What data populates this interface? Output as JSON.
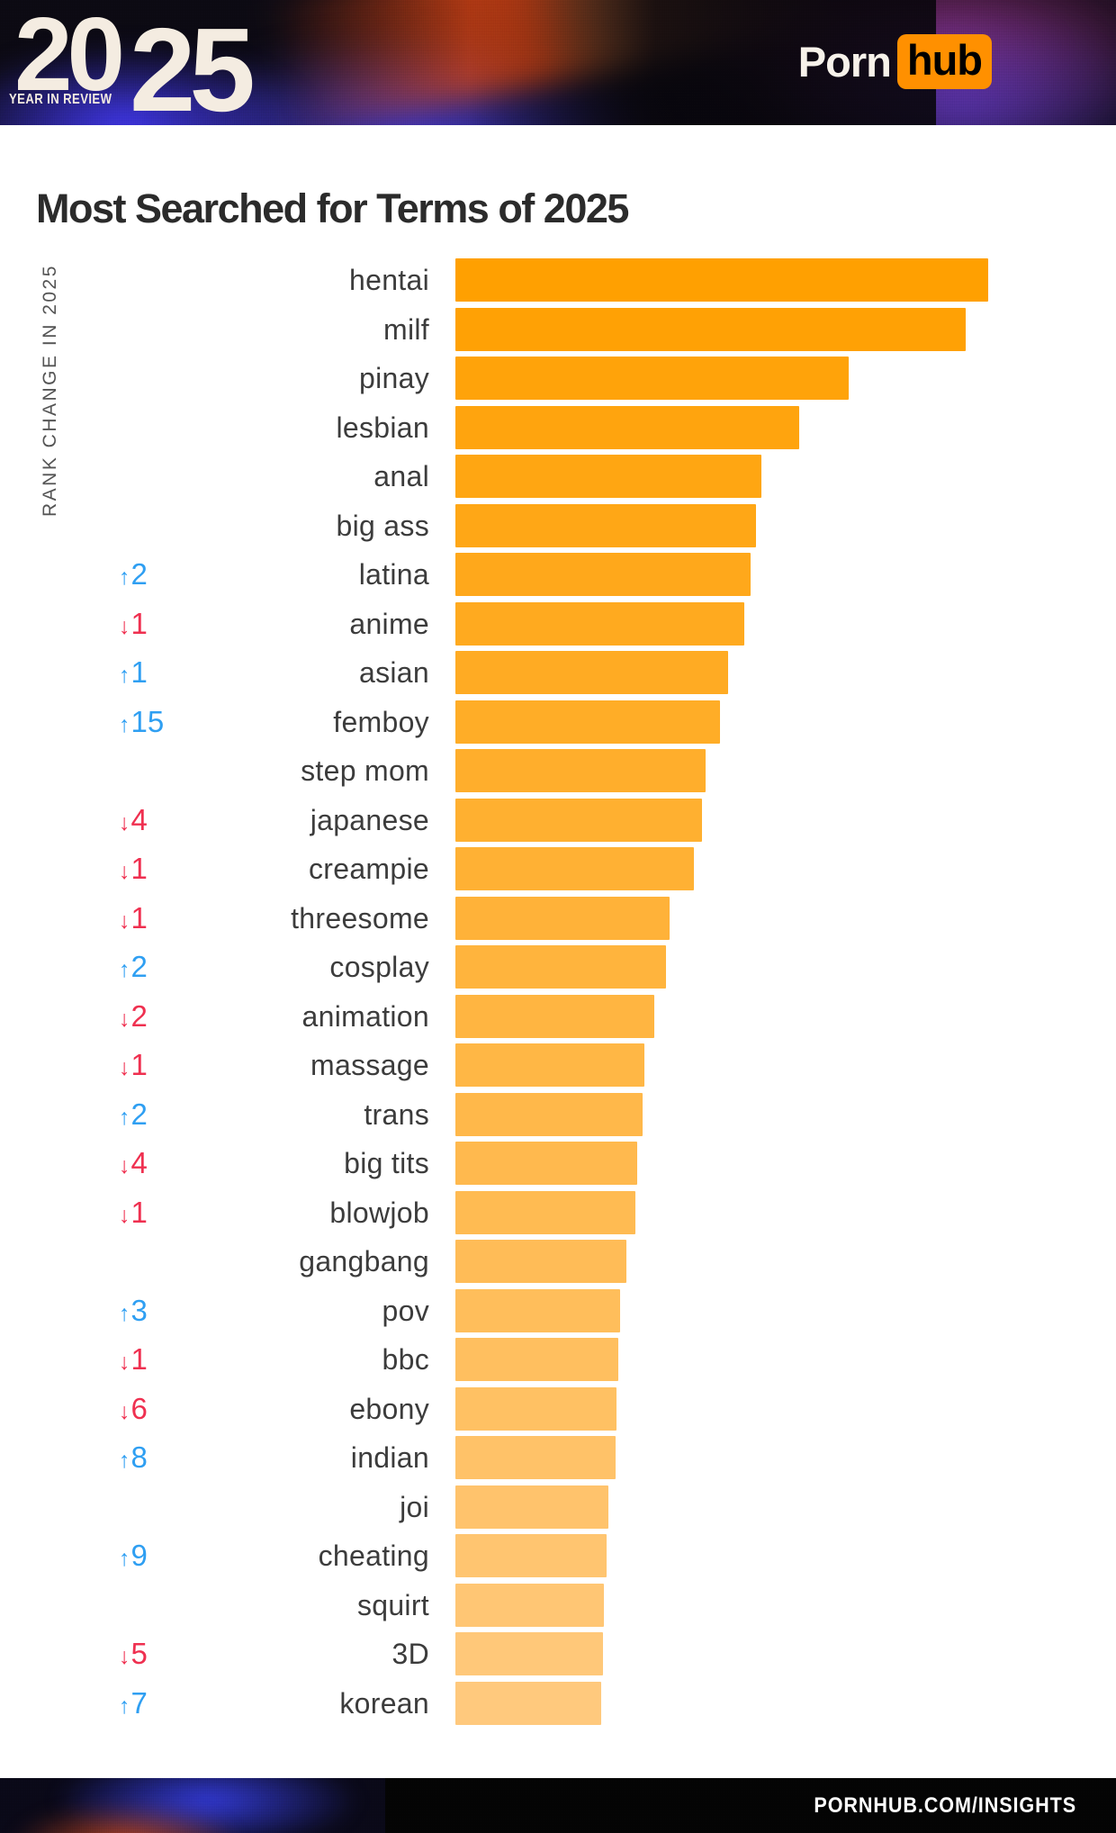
{
  "header": {
    "year_first": "20",
    "year_second": "25",
    "year_subtitle": "YEAR IN REVIEW",
    "brand_part1": "Porn",
    "brand_part2": "hub"
  },
  "title": "Most Searched for Terms of 2025",
  "axis_label": "RANK CHANGE IN 2025",
  "footer": {
    "url": "PORNHUB.COM/INSIGHTS"
  },
  "colors": {
    "brand_orange": "#FF9000",
    "cream": "#F4ECE1",
    "title_gray": "#2B2B2B",
    "label_gray": "#3C3C3C"
  },
  "chart_data": {
    "type": "bar",
    "orientation": "horizontal",
    "title": "Most Searched for Terms of 2025",
    "xlabel": "",
    "ylabel": "RANK CHANGE IN 2025",
    "grid": false,
    "legend": false,
    "categories": [
      "hentai",
      "milf",
      "pinay",
      "lesbian",
      "anal",
      "big ass",
      "latina",
      "anime",
      "asian",
      "femboy",
      "step mom",
      "japanese",
      "creampie",
      "threesome",
      "cosplay",
      "animation",
      "massage",
      "trans",
      "big tits",
      "blowjob",
      "gangbang",
      "pov",
      "bbc",
      "ebony",
      "indian",
      "joi",
      "cheating",
      "squirt",
      "3D",
      "korean"
    ],
    "values": [
      592,
      567,
      437,
      382,
      340,
      334,
      328,
      321,
      303,
      294,
      278,
      274,
      265,
      238,
      234,
      221,
      210,
      208,
      202,
      200,
      190,
      183,
      181,
      179,
      178,
      170,
      168,
      165,
      164,
      162
    ],
    "value_unit": "relative search volume (bar length, px)",
    "rank_changes": [
      "",
      "",
      "",
      "",
      "",
      "",
      "+2",
      "-1",
      "+1",
      "+15",
      "",
      "-4",
      "-1",
      "-1",
      "+2",
      "-2",
      "-1",
      "+2",
      "-4",
      "-1",
      "",
      "+3",
      "-1",
      "-6",
      "+8",
      "",
      "+9",
      "",
      "-5",
      "+7"
    ],
    "bar_color_start": "#FFA001",
    "bar_color_end": "#FFC97D",
    "up_color": "#2F9FF2",
    "down_color": "#EF3050"
  }
}
